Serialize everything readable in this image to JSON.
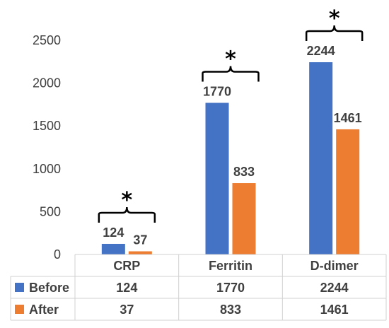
{
  "chart_data": {
    "type": "bar",
    "categories": [
      "CRP",
      "Ferritin",
      "D-dimer"
    ],
    "series": [
      {
        "name": "Before",
        "values": [
          124,
          1770,
          2244
        ],
        "color": "#4472C4"
      },
      {
        "name": "After",
        "values": [
          37,
          833,
          1461
        ],
        "color": "#ED7D31"
      }
    ],
    "ylim": [
      0,
      2500
    ],
    "yticks": [
      0,
      500,
      1000,
      1500,
      2000,
      2500
    ],
    "grid": false,
    "significance_markers": [
      "*",
      "*",
      "*"
    ],
    "data_table": true
  }
}
